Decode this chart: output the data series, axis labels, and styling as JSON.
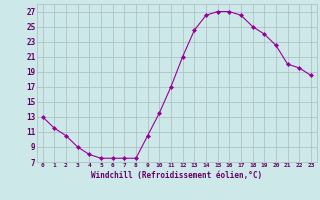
{
  "x": [
    0,
    1,
    2,
    3,
    4,
    5,
    6,
    7,
    8,
    9,
    10,
    11,
    12,
    13,
    14,
    15,
    16,
    17,
    18,
    19,
    20,
    21,
    22,
    23
  ],
  "y": [
    13,
    11.5,
    10.5,
    9,
    8,
    7.5,
    7.5,
    7.5,
    7.5,
    10.5,
    13.5,
    17,
    21,
    24.5,
    26.5,
    27,
    27,
    26.5,
    25,
    24,
    22.5,
    20,
    19.5,
    18.5
  ],
  "line_color": "#990099",
  "marker": "D",
  "marker_size": 2.0,
  "bg_color": "#cce8e8",
  "grid_color": "#aabbbb",
  "xlabel": "Windchill (Refroidissement éolien,°C)",
  "xlabel_color": "#660066",
  "tick_color": "#660066",
  "ylim": [
    7,
    28
  ],
  "xlim": [
    -0.5,
    23.5
  ],
  "yticks": [
    7,
    9,
    11,
    13,
    15,
    17,
    19,
    21,
    23,
    25,
    27
  ],
  "xticks": [
    0,
    1,
    2,
    3,
    4,
    5,
    6,
    7,
    8,
    9,
    10,
    11,
    12,
    13,
    14,
    15,
    16,
    17,
    18,
    19,
    20,
    21,
    22,
    23
  ],
  "xtick_labels": [
    "0",
    "1",
    "2",
    "3",
    "4",
    "5",
    "6",
    "7",
    "8",
    "9",
    "10",
    "11",
    "12",
    "13",
    "14",
    "15",
    "16",
    "17",
    "18",
    "19",
    "20",
    "21",
    "22",
    "23"
  ],
  "ytick_labels": [
    "7",
    "9",
    "11",
    "13",
    "15",
    "17",
    "19",
    "21",
    "23",
    "25",
    "27"
  ]
}
